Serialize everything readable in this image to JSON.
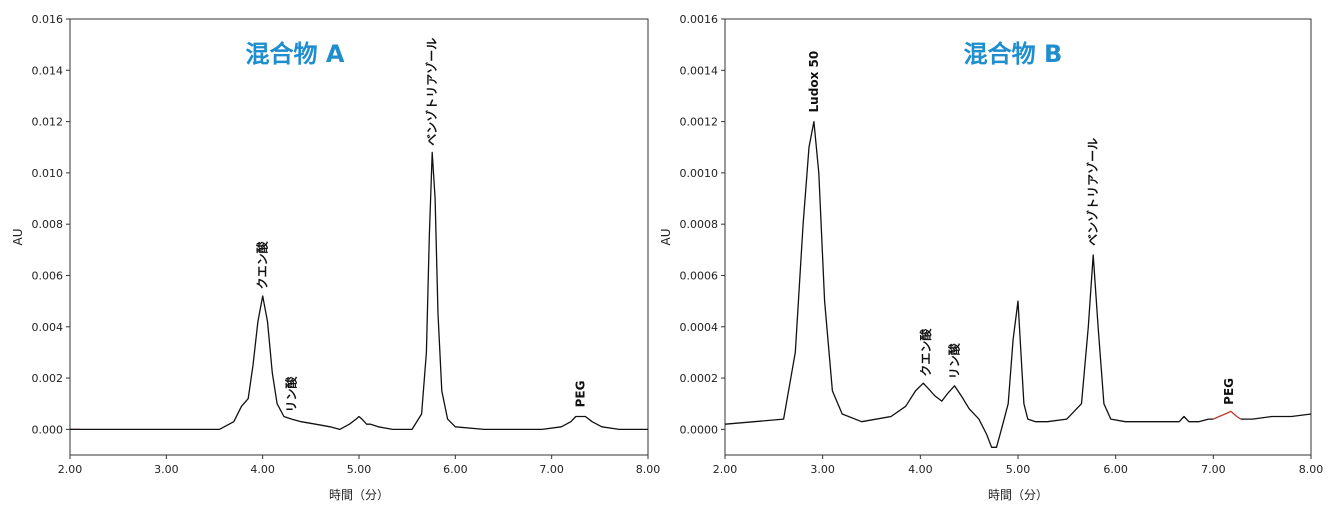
{
  "colors": {
    "title": "#1f8ecf",
    "trace": "#111111",
    "highlight": "#c0392b",
    "frame": "#333333"
  },
  "chart_data": [
    {
      "type": "line",
      "title": "混合物 A",
      "xlabel": "時間（分）",
      "ylabel": "AU",
      "xlim": [
        2.0,
        8.0
      ],
      "ylim": [
        -0.001,
        0.016
      ],
      "x_ticks": [
        "2.00",
        "3.00",
        "4.00",
        "5.00",
        "6.00",
        "7.00",
        "8.00"
      ],
      "x_tick_values": [
        2,
        3,
        4,
        5,
        6,
        7,
        8
      ],
      "y_ticks": [
        "0.000",
        "0.002",
        "0.004",
        "0.006",
        "0.008",
        "0.010",
        "0.012",
        "0.014",
        "0.016"
      ],
      "y_tick_values": [
        0,
        0.002,
        0.004,
        0.006,
        0.008,
        0.01,
        0.012,
        0.014,
        0.016
      ],
      "baseline_segment": {
        "x": [
          2.0,
          2.1
        ],
        "y": 0.0
      },
      "series": [
        {
          "x": [
            2.0,
            3.0,
            3.3,
            3.55,
            3.7,
            3.78,
            3.85,
            3.9,
            3.95,
            4.0,
            4.05,
            4.1,
            4.15,
            4.22,
            4.3,
            4.4,
            4.55,
            4.7,
            4.8,
            4.9,
            4.97,
            5.0,
            5.03,
            5.08,
            5.12,
            5.2,
            5.35,
            5.55,
            5.65,
            5.7,
            5.73,
            5.76,
            5.79,
            5.82,
            5.86,
            5.92,
            6.0,
            6.3,
            6.6,
            6.9,
            7.1,
            7.2,
            7.25,
            7.3,
            7.35,
            7.42,
            7.52,
            7.7,
            8.0
          ],
          "y": [
            0.0,
            0.0,
            0.0,
            0.0,
            0.0003,
            0.0009,
            0.0012,
            0.0025,
            0.0042,
            0.0052,
            0.0042,
            0.0022,
            0.001,
            0.0005,
            0.0004,
            0.0003,
            0.0002,
            0.0001,
            0.0,
            0.0002,
            0.0004,
            0.0005,
            0.0004,
            0.0002,
            0.0002,
            0.0001,
            0.0,
            0.0,
            0.0006,
            0.003,
            0.0075,
            0.0108,
            0.009,
            0.0045,
            0.0015,
            0.0004,
            0.0001,
            0.0,
            0.0,
            0.0,
            0.0001,
            0.0003,
            0.0005,
            0.0005,
            0.0005,
            0.0003,
            0.0001,
            0.0,
            0.0
          ]
        }
      ],
      "annotations": [
        {
          "text": "クエン酸",
          "x": 4.0,
          "y": 0.0053
        },
        {
          "text": "リン酸",
          "x": 4.3,
          "y": 0.0005
        },
        {
          "text": "ベンゾトリアゾール",
          "x": 5.76,
          "y": 0.0109
        },
        {
          "text": "PEG",
          "x": 7.3,
          "y": 0.0007
        }
      ]
    },
    {
      "type": "line",
      "title": "混合物 B",
      "xlabel": "時間（分）",
      "ylabel": "AU",
      "xlim": [
        2.0,
        8.0
      ],
      "ylim": [
        -0.0001,
        0.0016
      ],
      "x_ticks": [
        "2.00",
        "3.00",
        "4.00",
        "5.00",
        "6.00",
        "7.00",
        "8.00"
      ],
      "x_tick_values": [
        2,
        3,
        4,
        5,
        6,
        7,
        8
      ],
      "y_ticks": [
        "0.0000",
        "0.0002",
        "0.0004",
        "0.0006",
        "0.0008",
        "0.0010",
        "0.0012",
        "0.0014",
        "0.0016"
      ],
      "y_tick_values": [
        0,
        0.0002,
        0.0004,
        0.0006,
        0.0008,
        0.001,
        0.0012,
        0.0014,
        0.0016
      ],
      "series": [
        {
          "x": [
            2.0,
            2.3,
            2.6,
            2.72,
            2.8,
            2.86,
            2.91,
            2.96,
            3.02,
            3.1,
            3.2,
            3.4,
            3.7,
            3.85,
            3.95,
            4.03,
            4.08,
            4.15,
            4.22,
            4.28,
            4.35,
            4.42,
            4.5,
            4.6,
            4.68,
            4.73,
            4.78,
            4.83,
            4.9,
            4.95,
            5.0,
            5.03,
            5.06,
            5.1,
            5.18,
            5.3,
            5.5,
            5.65,
            5.72,
            5.77,
            5.82,
            5.88,
            5.95,
            6.1,
            6.4,
            6.65,
            6.7,
            6.75,
            6.85,
            6.95,
            7.0
          ],
          "y": [
            2e-05,
            3e-05,
            4e-05,
            0.0003,
            0.0008,
            0.0011,
            0.0012,
            0.001,
            0.0005,
            0.00015,
            6e-05,
            3e-05,
            5e-05,
            9e-05,
            0.00015,
            0.00018,
            0.00016,
            0.00013,
            0.00011,
            0.00014,
            0.00017,
            0.00013,
            8e-05,
            4e-05,
            -2e-05,
            -7e-05,
            -7e-05,
            0.0,
            0.0001,
            0.00035,
            0.0005,
            0.0003,
            0.0001,
            4e-05,
            3e-05,
            3e-05,
            4e-05,
            0.0001,
            0.0004,
            0.00068,
            0.0004,
            0.0001,
            4e-05,
            3e-05,
            3e-05,
            3e-05,
            5e-05,
            3e-05,
            3e-05,
            4e-05,
            4e-05
          ]
        },
        {
          "x": [
            7.0,
            7.06,
            7.12,
            7.18,
            7.24,
            7.28
          ],
          "y": [
            4e-05,
            5e-05,
            6e-05,
            7e-05,
            5e-05,
            4e-05
          ]
        },
        {
          "x": [
            7.28,
            7.4,
            7.6,
            7.8,
            8.0
          ],
          "y": [
            4e-05,
            4e-05,
            5e-05,
            5e-05,
            6e-05
          ]
        }
      ],
      "annotations": [
        {
          "text": "Ludox 50",
          "x": 2.91,
          "y": 0.00122
        },
        {
          "text": "クエン酸",
          "x": 4.06,
          "y": 0.00019
        },
        {
          "text": "リン酸",
          "x": 4.35,
          "y": 0.00018
        },
        {
          "text": "ベンゾトリアゾール",
          "x": 5.77,
          "y": 0.0007
        },
        {
          "text": "PEG",
          "x": 7.16,
          "y": 8e-05
        }
      ]
    }
  ]
}
